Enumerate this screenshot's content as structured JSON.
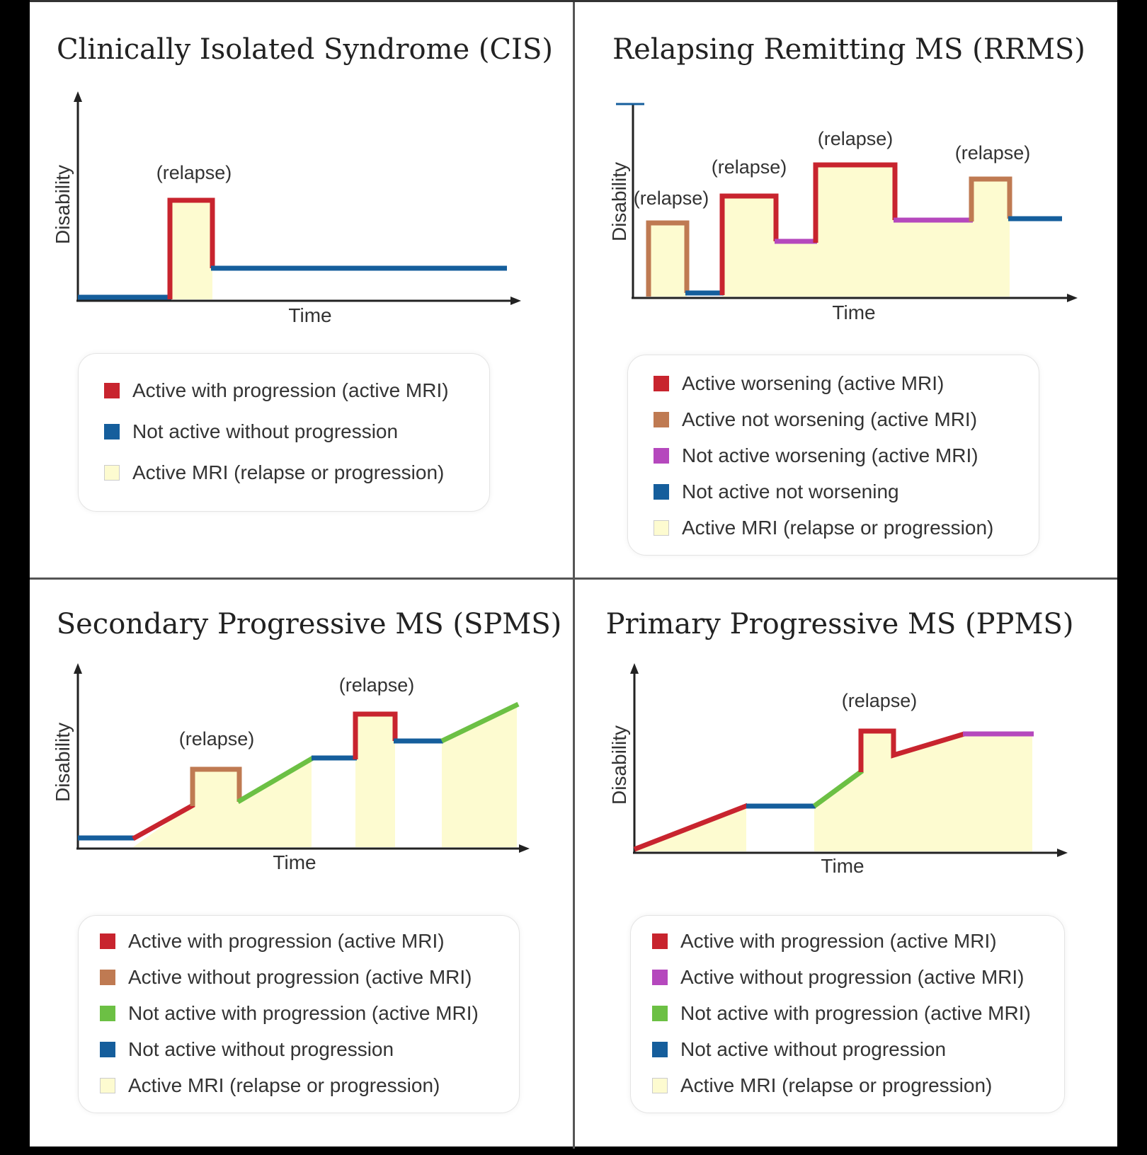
{
  "colors": {
    "red": "#c8242e",
    "brown": "#bf7a52",
    "purple": "#b548bd",
    "green": "#6cc044",
    "blue": "#155e9c",
    "light": "#fdfbd0",
    "axis": "#222222",
    "text": "#333333"
  },
  "panels": [
    {
      "title": "Clinically Isolated Syndrome (CIS)",
      "ylabel": "Disability",
      "xlabel": "Time",
      "relapse_labels": [
        "(relapse)"
      ],
      "legend": [
        {
          "color": "red",
          "label": "Active with progression (active MRI)"
        },
        {
          "color": "blue",
          "label": "Not active without progression"
        },
        {
          "color": "light",
          "label": "Active MRI (relapse or progression)"
        }
      ]
    },
    {
      "title": "Relapsing Remitting MS (RRMS)",
      "ylabel": "Disability",
      "xlabel": "Time",
      "relapse_labels": [
        "(relapse)",
        "(relapse)",
        "(relapse)",
        "(relapse)"
      ],
      "legend": [
        {
          "color": "red",
          "label": "Active worsening (active MRI)"
        },
        {
          "color": "brown",
          "label": "Active not worsening (active MRI)"
        },
        {
          "color": "purple",
          "label": "Not active worsening (active MRI)"
        },
        {
          "color": "blue",
          "label": "Not active not worsening"
        },
        {
          "color": "light",
          "label": "Active MRI (relapse or progression)"
        }
      ]
    },
    {
      "title": "Secondary Progressive MS (SPMS)",
      "ylabel": "Disability",
      "xlabel": "Time",
      "relapse_labels": [
        "(relapse)",
        "(relapse)"
      ],
      "legend": [
        {
          "color": "red",
          "label": "Active with progression (active MRI)"
        },
        {
          "color": "brown",
          "label": "Active without progression (active MRI)"
        },
        {
          "color": "green",
          "label": "Not active with progression (active MRI)"
        },
        {
          "color": "blue",
          "label": "Not active without progression"
        },
        {
          "color": "light",
          "label": "Active MRI (relapse or progression)"
        }
      ]
    },
    {
      "title": "Primary Progressive MS (PPMS)",
      "ylabel": "Disability",
      "xlabel": "Time",
      "relapse_labels": [
        "(relapse)"
      ],
      "legend": [
        {
          "color": "red",
          "label": "Active with progression (active MRI)"
        },
        {
          "color": "purple",
          "label": "Active without progression (active MRI)"
        },
        {
          "color": "green",
          "label": "Not active with progression (active MRI)"
        },
        {
          "color": "blue",
          "label": "Not active without progression"
        },
        {
          "color": "light",
          "label": "Active MRI (relapse or progression)"
        }
      ]
    }
  ]
}
